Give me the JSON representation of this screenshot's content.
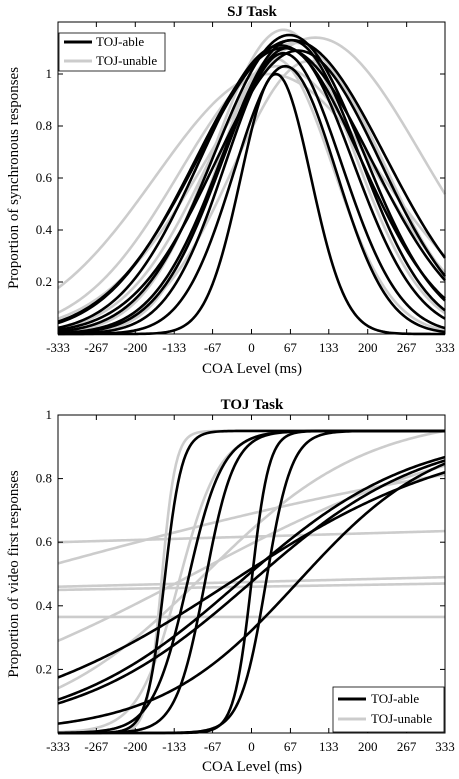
{
  "chart_data": [
    {
      "type": "line",
      "title": "SJ Task",
      "xlabel": "COA Level (ms)",
      "ylabel": "Proportion of synchronous responses",
      "xlim": [
        -333,
        333
      ],
      "ylim": [
        0,
        1.2
      ],
      "xticks": [
        -333,
        -267,
        -200,
        -133,
        -67,
        0,
        67,
        133,
        200,
        267,
        333
      ],
      "xtick_labels": [
        "-333",
        "-267",
        "-200",
        "-133",
        "-67",
        "0",
        "67",
        "133",
        "200",
        "267",
        "333"
      ],
      "yticks": [
        0.2,
        0.4,
        0.6,
        0.8,
        1.0
      ],
      "ytick_labels": [
        "0.2",
        "0.4",
        "0.6",
        "0.8",
        "1"
      ],
      "grid": false,
      "legend_position": "top-left",
      "legend": [
        {
          "label": "TOJ-able",
          "color": "#000000"
        },
        {
          "label": "TOJ-unable",
          "color": "#cccccc"
        }
      ],
      "curve_model": "gaussian: amp * exp(-(x - mu)^2 / (2 * sigma^2))",
      "series": [
        {
          "group": "TOJ-able",
          "amp": 1.0,
          "mu": 42,
          "sigma": 60
        },
        {
          "group": "TOJ-able",
          "amp": 1.03,
          "mu": 58,
          "sigma": 88
        },
        {
          "group": "TOJ-able",
          "amp": 1.08,
          "mu": 55,
          "sigma": 100
        },
        {
          "group": "TOJ-able",
          "amp": 1.1,
          "mu": 62,
          "sigma": 112
        },
        {
          "group": "TOJ-able",
          "amp": 1.13,
          "mu": 68,
          "sigma": 118
        },
        {
          "group": "TOJ-able",
          "amp": 1.15,
          "mu": 65,
          "sigma": 128
        },
        {
          "group": "TOJ-able",
          "amp": 1.11,
          "mu": 50,
          "sigma": 138
        },
        {
          "group": "TOJ-able",
          "amp": 1.09,
          "mu": 80,
          "sigma": 142
        },
        {
          "group": "TOJ-able",
          "amp": 1.1,
          "mu": 55,
          "sigma": 152
        },
        {
          "group": "TOJ-able",
          "amp": 1.13,
          "mu": 70,
          "sigma": 160
        },
        {
          "group": "TOJ-unable",
          "amp": 1.06,
          "mu": 40,
          "sigma": 100
        },
        {
          "group": "TOJ-unable",
          "amp": 1.17,
          "mu": 55,
          "sigma": 120
        },
        {
          "group": "TOJ-unable",
          "amp": 1.05,
          "mu": 100,
          "sigma": 132
        },
        {
          "group": "TOJ-unable",
          "amp": 1.12,
          "mu": 75,
          "sigma": 145
        },
        {
          "group": "TOJ-unable",
          "amp": 1.03,
          "mu": 45,
          "sigma": 168
        },
        {
          "group": "TOJ-unable",
          "amp": 1.14,
          "mu": 110,
          "sigma": 182
        },
        {
          "group": "TOJ-unable",
          "amp": 1.0,
          "mu": 30,
          "sigma": 195
        }
      ]
    },
    {
      "type": "line",
      "title": "TOJ Task",
      "xlabel": "COA Level (ms)",
      "ylabel": "Proportion of video first responses",
      "xlim": [
        -333,
        333
      ],
      "ylim": [
        0,
        1.0
      ],
      "xticks": [
        -333,
        -267,
        -200,
        -133,
        -67,
        0,
        67,
        133,
        200,
        267,
        333
      ],
      "xtick_labels": [
        "-333",
        "-267",
        "-200",
        "-133",
        "-67",
        "0",
        "67",
        "133",
        "200",
        "267",
        "333"
      ],
      "yticks": [
        0.2,
        0.4,
        0.6,
        0.8,
        1.0
      ],
      "ytick_labels": [
        "0.2",
        "0.4",
        "0.6",
        "0.8",
        "1"
      ],
      "grid": false,
      "legend_position": "bottom-right",
      "legend": [
        {
          "label": "TOJ-able",
          "color": "#000000"
        },
        {
          "label": "TOJ-unable",
          "color": "#cccccc"
        }
      ],
      "curve_model": "logistic: base + (top - base) / (1 + exp(-(x - mu) / s))",
      "series": [
        {
          "group": "TOJ-able",
          "base": 0,
          "top": 0.95,
          "mu": -150,
          "s": 15
        },
        {
          "group": "TOJ-able",
          "base": 0,
          "top": 0.95,
          "mu": -110,
          "s": 30
        },
        {
          "group": "TOJ-able",
          "base": 0,
          "top": 0.95,
          "mu": -80,
          "s": 25
        },
        {
          "group": "TOJ-able",
          "base": 0,
          "top": 0.95,
          "mu": 0,
          "s": 15
        },
        {
          "group": "TOJ-able",
          "base": 0,
          "top": 0.95,
          "mu": 25,
          "s": 22
        },
        {
          "group": "TOJ-able",
          "base": 0,
          "top": 0.95,
          "mu": -20,
          "s": 150
        },
        {
          "group": "TOJ-able",
          "base": 0,
          "top": 0.95,
          "mu": -35,
          "s": 200
        },
        {
          "group": "TOJ-able",
          "base": 0,
          "top": 0.95,
          "mu": 0,
          "s": 150
        },
        {
          "group": "TOJ-able",
          "base": 0,
          "top": 0.95,
          "mu": 80,
          "s": 120
        },
        {
          "group": "TOJ-unable",
          "base": 0,
          "top": 0.95,
          "mu": -155,
          "s": 12
        },
        {
          "group": "TOJ-unable",
          "base": 0,
          "top": 0.95,
          "mu": -125,
          "s": 35
        },
        {
          "group": "TOJ-unable",
          "base": 0,
          "top": 1.0,
          "mu": -80,
          "s": 140
        },
        {
          "group": "TOJ-unable",
          "base": 0,
          "top": 1.0,
          "mu": -100,
          "s": 260
        },
        {
          "group": "TOJ-unable",
          "base": 0,
          "top": 1.0,
          "mu": -400,
          "s": 500
        },
        {
          "group": "TOJ-unable",
          "base": 0.6,
          "top": 0.6,
          "mu": 0,
          "s": 100,
          "end": 0.635
        },
        {
          "group": "TOJ-unable",
          "base": 0.45,
          "top": 0.45,
          "mu": 0,
          "s": 100,
          "end": 0.47
        },
        {
          "group": "TOJ-unable",
          "base": 0.46,
          "top": 0.46,
          "mu": 0,
          "s": 100,
          "end": 0.49
        },
        {
          "group": "TOJ-unable",
          "base": 0.365,
          "top": 0.365,
          "mu": 0,
          "s": 100,
          "end": 0.365
        }
      ]
    }
  ]
}
